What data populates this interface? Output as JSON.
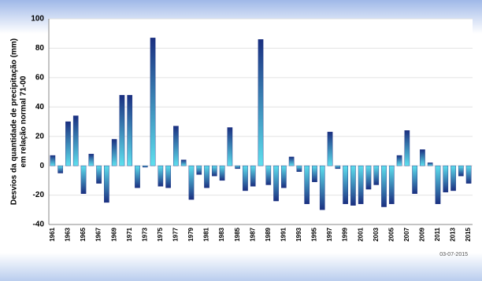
{
  "chart_data": {
    "type": "bar",
    "y_label_lines": [
      "Desvios da quantidade de precipitação (mm)",
      "em relação normal 71-00"
    ],
    "date_note": "03-07-2015",
    "categories": [
      "1961",
      null,
      "1963",
      null,
      "1965",
      null,
      "1967",
      null,
      "1969",
      null,
      "1971",
      null,
      "1973",
      null,
      "1975",
      null,
      "1977",
      null,
      "1979",
      null,
      "1981",
      null,
      "1983",
      null,
      "1985",
      null,
      "1987",
      null,
      "1989",
      null,
      "1991",
      null,
      "1993",
      null,
      "1995",
      null,
      "1997",
      null,
      "1999",
      null,
      "2001",
      null,
      "2003",
      null,
      "2005",
      null,
      "2007",
      null,
      "2009",
      null,
      "2011",
      null,
      "2013",
      null,
      "2015"
    ],
    "values": [
      7,
      -5,
      30,
      34,
      -19,
      8,
      -12,
      -25,
      18,
      48,
      48,
      -15,
      -1,
      87,
      -14,
      -15,
      27,
      4,
      -23,
      -6,
      -15,
      -7,
      -10,
      26,
      -2,
      -17,
      -14,
      86,
      -13,
      -24,
      -15,
      6,
      -4,
      -26,
      -11,
      -30,
      23,
      -2,
      -26,
      -27,
      -26,
      -16,
      -13,
      -28,
      -26,
      7,
      24,
      -19,
      11,
      2,
      -26,
      -18,
      -17,
      -7,
      -12
    ],
    "color": "#1a2f80",
    "ylim": [
      -40,
      100
    ],
    "yticks": [
      -40,
      -20,
      0,
      20,
      40,
      60,
      80,
      100
    ],
    "grid": true
  }
}
